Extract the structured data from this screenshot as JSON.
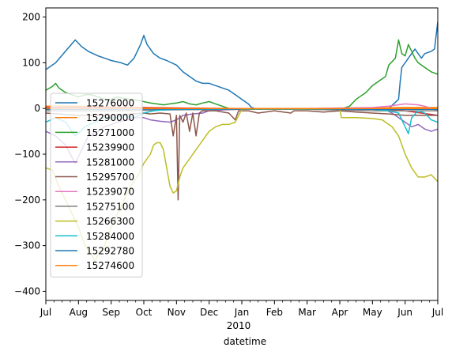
{
  "chart_data": {
    "type": "line",
    "title": "",
    "xlabel": "datetime",
    "ylabel": "",
    "x_year_label": "2010",
    "ylim": [
      -420,
      220
    ],
    "y_ticks": [
      200,
      100,
      0,
      -100,
      -200,
      -300,
      -400
    ],
    "x_tick_labels": [
      "Jul",
      "Aug",
      "Sep",
      "Oct",
      "Nov",
      "Dec",
      "Jan",
      "Feb",
      "Mar",
      "Apr",
      "May",
      "Jun",
      "Jul"
    ],
    "grid": false,
    "legend_position": "lower-left",
    "series": [
      {
        "name": "15276000",
        "color": "#1f77b4",
        "values": [
          [
            0,
            85
          ],
          [
            3,
            100
          ],
          [
            6,
            125
          ],
          [
            9,
            150
          ],
          [
            11,
            135
          ],
          [
            13,
            125
          ],
          [
            16,
            115
          ],
          [
            18,
            110
          ],
          [
            20,
            105
          ],
          [
            23,
            100
          ],
          [
            25,
            95
          ],
          [
            27,
            110
          ],
          [
            29,
            140
          ],
          [
            30,
            160
          ],
          [
            31,
            140
          ],
          [
            33,
            120
          ],
          [
            35,
            110
          ],
          [
            37,
            105
          ],
          [
            40,
            95
          ],
          [
            42,
            80
          ],
          [
            44,
            70
          ],
          [
            46,
            60
          ],
          [
            48,
            55
          ],
          [
            50,
            55
          ],
          [
            52,
            50
          ],
          [
            54,
            45
          ],
          [
            56,
            40
          ],
          [
            58,
            30
          ],
          [
            60,
            20
          ],
          [
            62,
            10
          ],
          [
            63,
            2
          ],
          [
            64,
            0
          ],
          [
            75,
            0
          ],
          [
            80,
            0
          ],
          [
            85,
            0
          ],
          [
            90,
            0
          ],
          [
            95,
            0
          ],
          [
            105,
            0
          ],
          [
            108,
            20
          ],
          [
            108.5,
            60
          ],
          [
            109,
            90
          ],
          [
            110,
            100
          ],
          [
            111,
            110
          ],
          [
            112,
            120
          ],
          [
            113,
            130
          ],
          [
            114,
            120
          ],
          [
            115,
            110
          ],
          [
            116,
            120
          ],
          [
            118,
            125
          ],
          [
            119,
            130
          ],
          [
            120,
            190
          ]
        ]
      },
      {
        "name": "15290000",
        "color": "#ff7f0e",
        "values": [
          [
            0,
            5
          ],
          [
            10,
            5
          ],
          [
            20,
            3
          ],
          [
            30,
            2
          ],
          [
            40,
            1
          ],
          [
            50,
            0
          ],
          [
            60,
            0
          ],
          [
            70,
            0
          ],
          [
            80,
            0
          ],
          [
            90,
            0
          ],
          [
            100,
            1
          ],
          [
            110,
            2
          ],
          [
            120,
            2
          ]
        ]
      },
      {
        "name": "15271000",
        "color": "#2ca02c",
        "values": [
          [
            0,
            40
          ],
          [
            2,
            48
          ],
          [
            3,
            55
          ],
          [
            4,
            45
          ],
          [
            6,
            35
          ],
          [
            8,
            30
          ],
          [
            10,
            25
          ],
          [
            12,
            30
          ],
          [
            14,
            30
          ],
          [
            16,
            25
          ],
          [
            18,
            20
          ],
          [
            20,
            20
          ],
          [
            22,
            25
          ],
          [
            24,
            22
          ],
          [
            26,
            20
          ],
          [
            28,
            18
          ],
          [
            30,
            15
          ],
          [
            32,
            12
          ],
          [
            34,
            10
          ],
          [
            36,
            8
          ],
          [
            38,
            10
          ],
          [
            40,
            12
          ],
          [
            42,
            15
          ],
          [
            44,
            10
          ],
          [
            46,
            8
          ],
          [
            48,
            12
          ],
          [
            50,
            15
          ],
          [
            52,
            10
          ],
          [
            54,
            5
          ],
          [
            56,
            0
          ],
          [
            58,
            -2
          ],
          [
            60,
            -2
          ],
          [
            70,
            -2
          ],
          [
            80,
            -2
          ],
          [
            90,
            -2
          ],
          [
            93,
            5
          ],
          [
            95,
            20
          ],
          [
            96,
            25
          ],
          [
            98,
            35
          ],
          [
            100,
            50
          ],
          [
            102,
            60
          ],
          [
            104,
            70
          ],
          [
            105,
            95
          ],
          [
            107,
            110
          ],
          [
            108,
            150
          ],
          [
            109,
            120
          ],
          [
            110,
            115
          ],
          [
            111,
            140
          ],
          [
            113,
            110
          ],
          [
            114,
            100
          ],
          [
            116,
            90
          ],
          [
            118,
            80
          ],
          [
            120,
            75
          ]
        ]
      },
      {
        "name": "15239900",
        "color": "#d62728",
        "values": [
          [
            0,
            2
          ],
          [
            20,
            2
          ],
          [
            40,
            1
          ],
          [
            60,
            0
          ],
          [
            80,
            0
          ],
          [
            100,
            0
          ],
          [
            110,
            -5
          ],
          [
            115,
            -10
          ],
          [
            120,
            -15
          ]
        ]
      },
      {
        "name": "15281000",
        "color": "#9467bd",
        "values": [
          [
            0,
            -50
          ],
          [
            3,
            -60
          ],
          [
            6,
            -80
          ],
          [
            9,
            -120
          ],
          [
            11,
            -90
          ],
          [
            13,
            -60
          ],
          [
            16,
            -50
          ],
          [
            18,
            -40
          ],
          [
            20,
            -35
          ],
          [
            22,
            -30
          ],
          [
            25,
            -25
          ],
          [
            28,
            -20
          ],
          [
            30,
            -20
          ],
          [
            32,
            -25
          ],
          [
            35,
            -28
          ],
          [
            38,
            -30
          ],
          [
            40,
            -25
          ],
          [
            42,
            -15
          ],
          [
            45,
            -12
          ],
          [
            48,
            -10
          ],
          [
            50,
            -5
          ],
          [
            55,
            -3
          ],
          [
            60,
            -2
          ],
          [
            70,
            -1
          ],
          [
            80,
            0
          ],
          [
            90,
            0
          ],
          [
            100,
            0
          ],
          [
            104,
            -3
          ],
          [
            106,
            -10
          ],
          [
            108,
            -20
          ],
          [
            110,
            -30
          ],
          [
            112,
            -40
          ],
          [
            114,
            -35
          ],
          [
            116,
            -45
          ],
          [
            118,
            -50
          ],
          [
            120,
            -45
          ]
        ]
      },
      {
        "name": "15295700",
        "color": "#8c564b",
        "values": [
          [
            0,
            -10
          ],
          [
            10,
            -15
          ],
          [
            20,
            -15
          ],
          [
            30,
            -10
          ],
          [
            32,
            -12
          ],
          [
            35,
            -10
          ],
          [
            38,
            -12
          ],
          [
            39,
            -60
          ],
          [
            40,
            -15
          ],
          [
            40.5,
            -200
          ],
          [
            41,
            -15
          ],
          [
            42,
            -30
          ],
          [
            43,
            -10
          ],
          [
            44,
            -50
          ],
          [
            45,
            -10
          ],
          [
            46,
            -60
          ],
          [
            47,
            -10
          ],
          [
            48,
            -5
          ],
          [
            52,
            -5
          ],
          [
            56,
            -10
          ],
          [
            58,
            -25
          ],
          [
            59,
            -5
          ],
          [
            62,
            -5
          ],
          [
            65,
            -10
          ],
          [
            70,
            -5
          ],
          [
            75,
            -10
          ],
          [
            76,
            -5
          ],
          [
            80,
            -5
          ],
          [
            85,
            -8
          ],
          [
            90,
            -5
          ],
          [
            95,
            -8
          ],
          [
            100,
            -10
          ],
          [
            105,
            -12
          ],
          [
            110,
            -15
          ],
          [
            115,
            -15
          ],
          [
            120,
            -15
          ]
        ]
      },
      {
        "name": "15239070",
        "color": "#e377c2",
        "values": [
          [
            0,
            0
          ],
          [
            20,
            0
          ],
          [
            40,
            0
          ],
          [
            60,
            0
          ],
          [
            80,
            0
          ],
          [
            100,
            2
          ],
          [
            105,
            5
          ],
          [
            110,
            10
          ],
          [
            114,
            8
          ],
          [
            116,
            5
          ],
          [
            118,
            0
          ],
          [
            120,
            -5
          ]
        ]
      },
      {
        "name": "15275100",
        "color": "#7f7f7f",
        "values": [
          [
            0,
            -5
          ],
          [
            20,
            -5
          ],
          [
            40,
            -3
          ],
          [
            60,
            -2
          ],
          [
            80,
            -2
          ],
          [
            100,
            -5
          ],
          [
            110,
            -5
          ],
          [
            120,
            -5
          ]
        ]
      },
      {
        "name": "15266300",
        "color": "#bcbd22",
        "values": [
          [
            0,
            -130
          ],
          [
            2,
            -135
          ],
          [
            4,
            -170
          ],
          [
            6,
            -200
          ],
          [
            8,
            -230
          ],
          [
            10,
            -260
          ],
          [
            12,
            -300
          ],
          [
            14,
            -320
          ],
          [
            15,
            -335
          ],
          [
            16,
            -320
          ],
          [
            18,
            -300
          ],
          [
            20,
            -260
          ],
          [
            22,
            -230
          ],
          [
            24,
            -200
          ],
          [
            26,
            -170
          ],
          [
            28,
            -150
          ],
          [
            30,
            -120
          ],
          [
            32,
            -100
          ],
          [
            33,
            -80
          ],
          [
            34,
            -75
          ],
          [
            35,
            -75
          ],
          [
            36,
            -90
          ],
          [
            37,
            -130
          ],
          [
            38,
            -170
          ],
          [
            39,
            -185
          ],
          [
            40,
            -180
          ],
          [
            41,
            -150
          ],
          [
            42,
            -130
          ],
          [
            44,
            -110
          ],
          [
            46,
            -90
          ],
          [
            48,
            -70
          ],
          [
            50,
            -50
          ],
          [
            52,
            -40
          ],
          [
            54,
            -35
          ],
          [
            56,
            -35
          ],
          [
            58,
            -30
          ],
          [
            60,
            -2
          ],
          [
            70,
            -2
          ],
          [
            75,
            -2
          ],
          [
            80,
            -2
          ],
          [
            85,
            -2
          ],
          [
            90,
            -2
          ],
          [
            90.5,
            -20
          ],
          [
            95,
            -20
          ],
          [
            100,
            -22
          ],
          [
            103,
            -25
          ],
          [
            106,
            -40
          ],
          [
            108,
            -60
          ],
          [
            110,
            -100
          ],
          [
            112,
            -130
          ],
          [
            114,
            -150
          ],
          [
            116,
            -150
          ],
          [
            118,
            -145
          ],
          [
            120,
            -160
          ]
        ]
      },
      {
        "name": "15284000",
        "color": "#17becf",
        "values": [
          [
            0,
            -30
          ],
          [
            3,
            -20
          ],
          [
            6,
            -30
          ],
          [
            9,
            -60
          ],
          [
            12,
            -40
          ],
          [
            15,
            -30
          ],
          [
            18,
            -20
          ],
          [
            21,
            -20
          ],
          [
            24,
            -15
          ],
          [
            27,
            -20
          ],
          [
            30,
            -10
          ],
          [
            33,
            -5
          ],
          [
            36,
            -3
          ],
          [
            40,
            -2
          ],
          [
            50,
            -2
          ],
          [
            60,
            -1
          ],
          [
            80,
            0
          ],
          [
            100,
            -2
          ],
          [
            105,
            -5
          ],
          [
            108,
            -10
          ],
          [
            110,
            -40
          ],
          [
            111,
            -55
          ],
          [
            112,
            -20
          ],
          [
            114,
            -5
          ],
          [
            116,
            -10
          ],
          [
            118,
            -25
          ],
          [
            120,
            -30
          ]
        ]
      },
      {
        "name": "15292780",
        "color": "#1f77b4",
        "values": [
          [
            0,
            -2
          ],
          [
            20,
            -2
          ],
          [
            40,
            -1
          ],
          [
            60,
            -1
          ],
          [
            80,
            -1
          ],
          [
            100,
            -2
          ],
          [
            120,
            -2
          ]
        ]
      },
      {
        "name": "15274600",
        "color": "#ff7f0e",
        "values": [
          [
            0,
            0
          ],
          [
            20,
            0
          ],
          [
            40,
            0
          ],
          [
            60,
            0
          ],
          [
            80,
            0
          ],
          [
            100,
            0
          ],
          [
            120,
            0
          ]
        ]
      }
    ]
  }
}
